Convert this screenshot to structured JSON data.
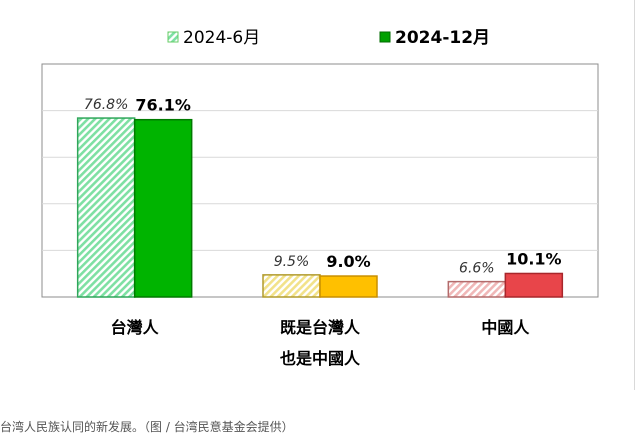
{
  "chart_data": {
    "type": "bar",
    "categories": [
      "台灣人",
      "既是台灣人\n也是中國人",
      "中國人"
    ],
    "series": [
      {
        "name": "2024-6月",
        "values": [
          76.8,
          9.5,
          6.6
        ],
        "labels": [
          "76.8%",
          "9.5%",
          "6.6%"
        ],
        "style": "hatched-light",
        "colors": [
          "#7ee0a3",
          "#f2e28a",
          "#f0b7b7"
        ],
        "edge_colors": [
          "#2fa65a",
          "#b19b2e",
          "#b36b6b"
        ]
      },
      {
        "name": "2024-12月",
        "values": [
          76.1,
          9.0,
          10.1
        ],
        "labels": [
          "76.1%",
          "9.0%",
          "10.1%"
        ],
        "style": "solid",
        "colors": [
          "#00b400",
          "#ffc000",
          "#e8454a"
        ],
        "edge_colors": [
          "#007a00",
          "#c98f00",
          "#a8262b"
        ]
      }
    ],
    "ylim": [
      0,
      100
    ],
    "grid": true,
    "legend_position": "top-center",
    "legend_colors": [
      "#66cc66",
      "#00a000"
    ]
  },
  "caption": "台湾人民族认同的新发展。（图 / 台湾民意基金会提供）"
}
